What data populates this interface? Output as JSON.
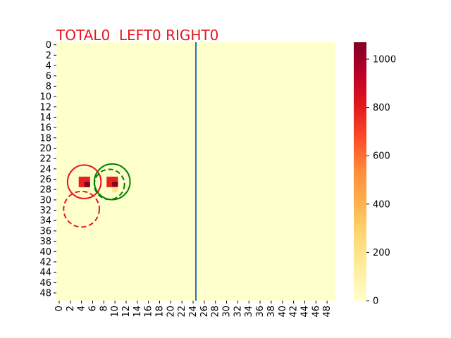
{
  "chart_data": {
    "type": "heatmap",
    "title": "TOTAL0  LEFT0 RIGHT0",
    "title_color": "#e8141c",
    "grid_size": 50,
    "background_value": 0,
    "vmin": 0,
    "vmax": 1070,
    "colormap": "YlOrRd",
    "xticks": [
      0,
      2,
      4,
      6,
      8,
      10,
      12,
      14,
      16,
      18,
      20,
      22,
      24,
      26,
      28,
      30,
      32,
      34,
      36,
      38,
      40,
      42,
      44,
      46,
      48
    ],
    "yticks": [
      0,
      2,
      4,
      6,
      8,
      10,
      12,
      14,
      16,
      18,
      20,
      22,
      24,
      26,
      28,
      30,
      32,
      34,
      36,
      38,
      40,
      42,
      44,
      46,
      48
    ],
    "colorbar_ticks": [
      0,
      200,
      400,
      600,
      800,
      1000
    ],
    "cells": [
      {
        "x": 4,
        "y": 26,
        "value": 780
      },
      {
        "x": 5,
        "y": 26,
        "value": 780
      },
      {
        "x": 4,
        "y": 27,
        "value": 780
      },
      {
        "x": 5,
        "y": 27,
        "value": 1070
      },
      {
        "x": 9,
        "y": 26,
        "value": 780
      },
      {
        "x": 10,
        "y": 26,
        "value": 780
      },
      {
        "x": 9,
        "y": 27,
        "value": 780
      },
      {
        "x": 10,
        "y": 27,
        "value": 1070
      },
      {
        "x": 10,
        "y": 28,
        "value": 200
      }
    ],
    "vertical_line": {
      "x": 25,
      "color": "#1f77b4"
    },
    "circles": [
      {
        "cx": 5.0,
        "cy": 27.0,
        "r": 3.0,
        "color": "#e8141c",
        "style": "solid"
      },
      {
        "cx": 4.5,
        "cy": 32.3,
        "r": 3.2,
        "color": "#e8141c",
        "style": "dashed"
      },
      {
        "cx": 10.0,
        "cy": 27.0,
        "r": 3.2,
        "color": "#008000",
        "style": "solid"
      },
      {
        "cx": 9.5,
        "cy": 27.5,
        "r": 2.7,
        "color": "#008000",
        "style": "dashed"
      }
    ]
  }
}
